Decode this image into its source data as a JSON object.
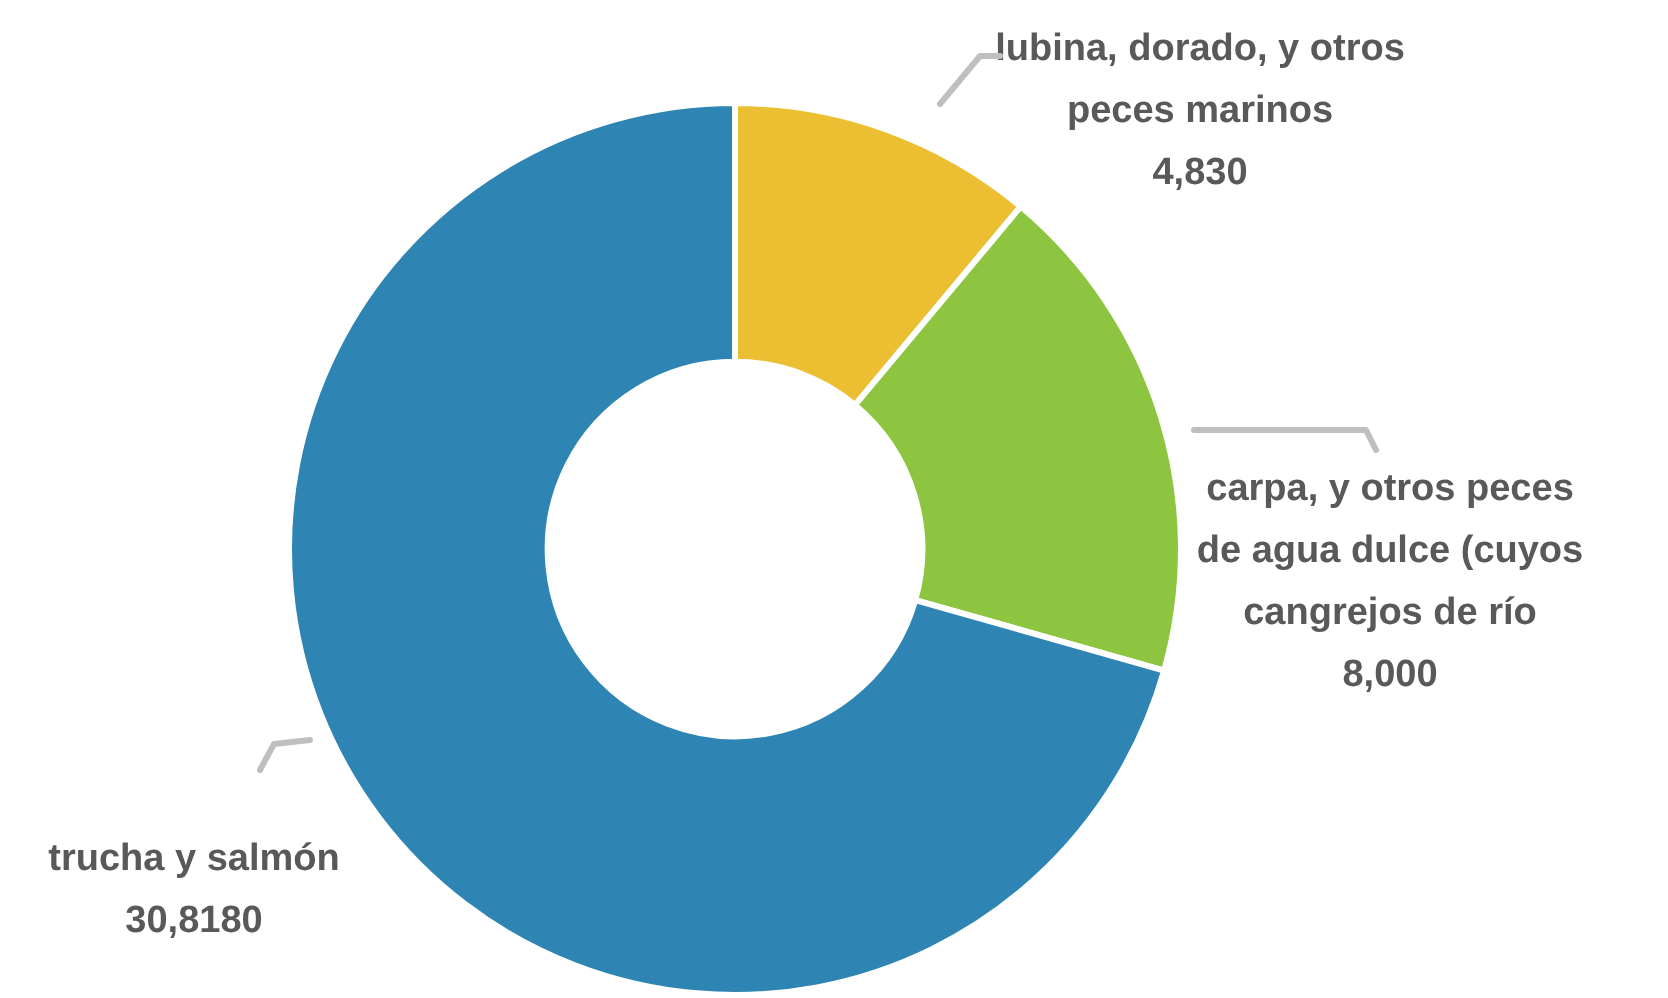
{
  "chart_data": {
    "type": "donut",
    "categories": [
      "lubina, dorado, y otros peces marinos",
      "carpa, y otros peces de agua dulce (cuyos cangrejos de río",
      "trucha y salmón"
    ],
    "values": [
      4830,
      8000,
      30818
    ],
    "value_labels": [
      "4,830",
      "8,000",
      "30,8180"
    ],
    "colors": [
      "#ecbf32",
      "#8dc540",
      "#2e84b2"
    ],
    "legend": false
  }
}
